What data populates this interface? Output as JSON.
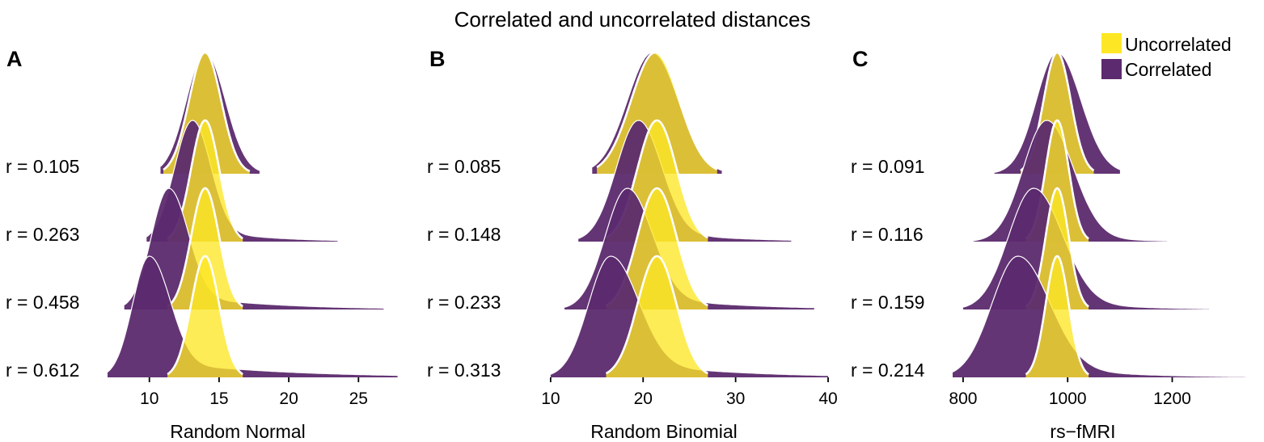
{
  "title": "Correlated and uncorrelated distances",
  "legend": [
    {
      "label": "Uncorrelated",
      "color": "#FDE725"
    },
    {
      "label": "Correlated",
      "color": "#5C2A6E"
    }
  ],
  "chart_data": [
    {
      "type": "area",
      "panel": "A",
      "xlabel": "Random Normal",
      "xlim": [
        7,
        28
      ],
      "xticks": [
        "10",
        "15",
        "20",
        "25"
      ],
      "rows": [
        {
          "r_label": "r =  0.105",
          "uncorrelated": {
            "mean": 14,
            "sd": 1.15,
            "min": 11,
            "max": 17.2
          },
          "correlated": {
            "peak": 14,
            "sdL": 1.35,
            "sdR": 1.45,
            "tail": 0,
            "tailDecay": 3,
            "min": 10.8,
            "max": 17.9
          }
        },
        {
          "r_label": "r =  0.263",
          "uncorrelated": {
            "mean": 14,
            "sd": 1.0,
            "min": 11.3,
            "max": 16.7
          },
          "correlated": {
            "peak": 13.1,
            "sdL": 1.3,
            "sdR": 1.3,
            "tail": 0.13,
            "tailDecay": 4,
            "min": 9.8,
            "max": 23.5
          }
        },
        {
          "r_label": "r =  0.458",
          "uncorrelated": {
            "mean": 14,
            "sd": 1.0,
            "min": 11.3,
            "max": 16.7
          },
          "correlated": {
            "peak": 11.4,
            "sdL": 1.25,
            "sdR": 1.4,
            "tail": 0.14,
            "tailDecay": 6,
            "min": 8.2,
            "max": 26.8
          }
        },
        {
          "r_label": "r =  0.612",
          "uncorrelated": {
            "mean": 14,
            "sd": 1.0,
            "min": 11.3,
            "max": 16.7
          },
          "correlated": {
            "peak": 10.0,
            "sdL": 1.2,
            "sdR": 1.5,
            "tail": 0.15,
            "tailDecay": 8,
            "min": 7.0,
            "max": 27.8
          }
        }
      ]
    },
    {
      "type": "area",
      "panel": "B",
      "xlabel": "Random Binomial",
      "xlim": [
        8,
        40
      ],
      "xticks": [
        "10",
        "20",
        "30",
        "40"
      ],
      "rows": [
        {
          "r_label": "r =  0.085",
          "uncorrelated": {
            "mean": 21.3,
            "sd": 2.6,
            "min": 15,
            "max": 28
          },
          "correlated": {
            "peak": 21,
            "sdL": 2.7,
            "sdR": 2.8,
            "tail": 0,
            "tailDecay": 3,
            "min": 14.5,
            "max": 28.5
          }
        },
        {
          "r_label": "r =  0.148",
          "uncorrelated": {
            "mean": 21.5,
            "sd": 2.1,
            "min": 16,
            "max": 27
          },
          "correlated": {
            "peak": 19.5,
            "sdL": 2.4,
            "sdR": 2.5,
            "tail": 0.12,
            "tailDecay": 7,
            "min": 13,
            "max": 36
          }
        },
        {
          "r_label": "r =  0.233",
          "uncorrelated": {
            "mean": 21.5,
            "sd": 2.1,
            "min": 16,
            "max": 27
          },
          "correlated": {
            "peak": 18.3,
            "sdL": 2.4,
            "sdR": 2.7,
            "tail": 0.14,
            "tailDecay": 9,
            "min": 11.5,
            "max": 38.5
          }
        },
        {
          "r_label": "r =  0.313",
          "uncorrelated": {
            "mean": 21.5,
            "sd": 2.1,
            "min": 16,
            "max": 27
          },
          "correlated": {
            "peak": 16.5,
            "sdL": 2.4,
            "sdR": 3.0,
            "tail": 0.16,
            "tailDecay": 10,
            "min": 10,
            "max": 40
          }
        }
      ]
    },
    {
      "type": "area",
      "panel": "C",
      "xlabel": "rs−fMRI",
      "xlim": [
        780,
        1340
      ],
      "xticks": [
        "800",
        "1000",
        "1200"
      ],
      "rows": [
        {
          "r_label": "r =  0.091",
          "uncorrelated": {
            "mean": 980,
            "sd": 26,
            "min": 910,
            "max": 1050
          },
          "correlated": {
            "peak": 980,
            "sdL": 40,
            "sdR": 45,
            "tail": 0.05,
            "tailDecay": 60,
            "min": 860,
            "max": 1100
          }
        },
        {
          "r_label": "r =  0.116",
          "uncorrelated": {
            "mean": 980,
            "sd": 22,
            "min": 920,
            "max": 1040
          },
          "correlated": {
            "peak": 960,
            "sdL": 45,
            "sdR": 50,
            "tail": 0.1,
            "tailDecay": 80,
            "min": 820,
            "max": 1190
          }
        },
        {
          "r_label": "r =  0.159",
          "uncorrelated": {
            "mean": 980,
            "sd": 22,
            "min": 920,
            "max": 1040
          },
          "correlated": {
            "peak": 935,
            "sdL": 48,
            "sdR": 55,
            "tail": 0.12,
            "tailDecay": 110,
            "min": 800,
            "max": 1270
          }
        },
        {
          "r_label": "r =  0.214",
          "uncorrelated": {
            "mean": 980,
            "sd": 22,
            "min": 920,
            "max": 1040
          },
          "correlated": {
            "peak": 905,
            "sdL": 50,
            "sdR": 60,
            "tail": 0.14,
            "tailDecay": 130,
            "min": 780,
            "max": 1340
          }
        }
      ]
    }
  ]
}
